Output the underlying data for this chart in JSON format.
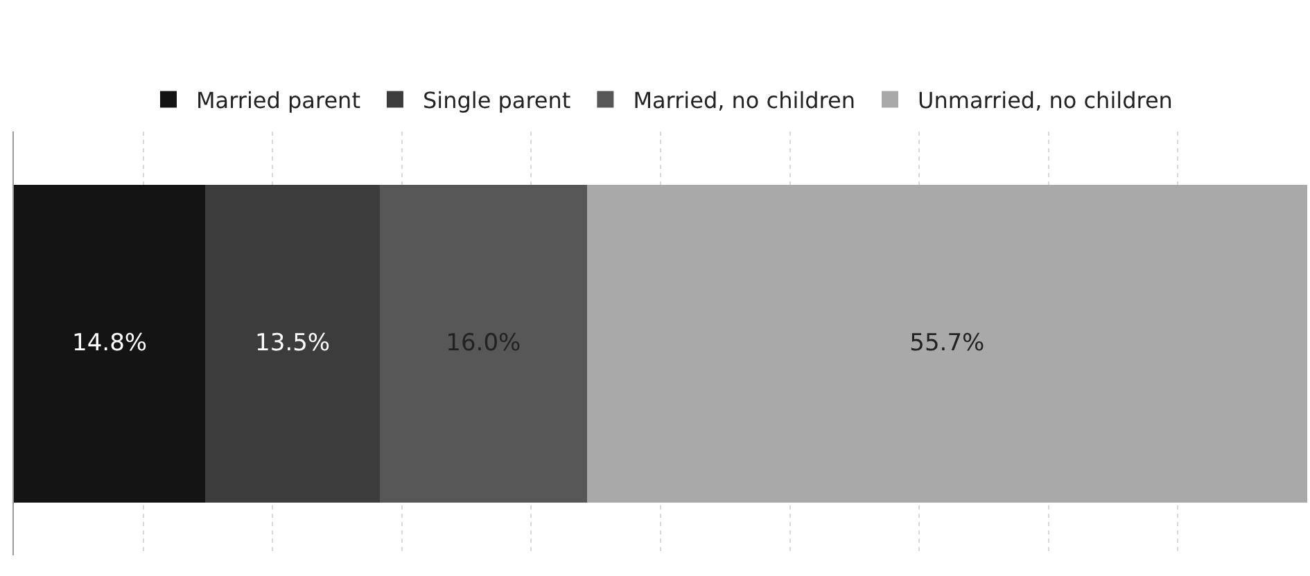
{
  "chart_data": {
    "type": "bar",
    "orientation": "horizontal",
    "stacked": true,
    "categories": [
      null
    ],
    "series": [
      {
        "name": "Married parent",
        "color": "#141414",
        "values": [
          14.8
        ],
        "value_labels": [
          "14.8%"
        ]
      },
      {
        "name": "Single parent",
        "color": "#3c3c3c",
        "values": [
          13.5
        ],
        "value_labels": [
          "13.5%"
        ]
      },
      {
        "name": "Married, no children",
        "color": "#575757",
        "values": [
          16.0
        ],
        "value_labels": [
          "16.0%"
        ]
      },
      {
        "name": "Unmarried, no children",
        "color": "#a9a9a9",
        "values": [
          55.7
        ],
        "value_labels": [
          "55.7%"
        ]
      }
    ],
    "xlim": [
      0,
      100
    ],
    "xticks": [
      {
        "value": 0,
        "label": null
      },
      {
        "value": 10,
        "label": null
      },
      {
        "value": 20,
        "label": null
      },
      {
        "value": 30,
        "label": null
      },
      {
        "value": 40,
        "label": null
      },
      {
        "value": 50,
        "label": null
      },
      {
        "value": 60,
        "label": null
      },
      {
        "value": 70,
        "label": null
      },
      {
        "value": 80,
        "label": null
      },
      {
        "value": 90,
        "label": null
      },
      {
        "value": 100,
        "label": null
      }
    ],
    "grid": "x",
    "legend": "top"
  }
}
